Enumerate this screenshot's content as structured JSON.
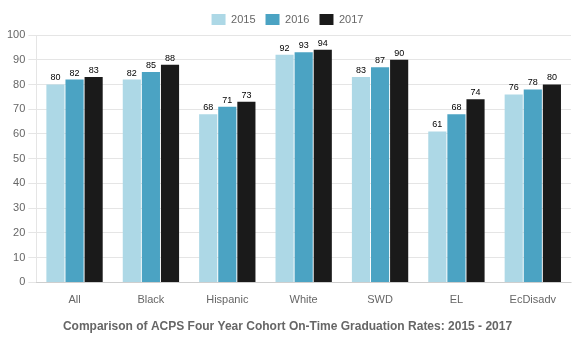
{
  "chart_data": {
    "type": "bar",
    "title": "Comparison of ACPS Four Year Cohort On-Time Graduation Rates: 2015 - 2017",
    "categories": [
      "All",
      "Black",
      "Hispanic",
      "White",
      "SWD",
      "EL",
      "EcDisadv"
    ],
    "series": [
      {
        "name": "2015",
        "color": "#ADD8E6",
        "values": [
          80,
          82,
          68,
          92,
          83,
          61,
          76
        ]
      },
      {
        "name": "2016",
        "color": "#4BA3C3",
        "values": [
          82,
          85,
          71,
          93,
          87,
          68,
          78
        ]
      },
      {
        "name": "2017",
        "color": "#1A1A1A",
        "values": [
          83,
          88,
          73,
          94,
          90,
          74,
          80
        ]
      }
    ],
    "ylim": [
      0,
      100
    ],
    "yticks": [
      0,
      10,
      20,
      30,
      40,
      50,
      60,
      70,
      80,
      90,
      100
    ],
    "grid": true,
    "legend": "top",
    "data_labels": true
  }
}
